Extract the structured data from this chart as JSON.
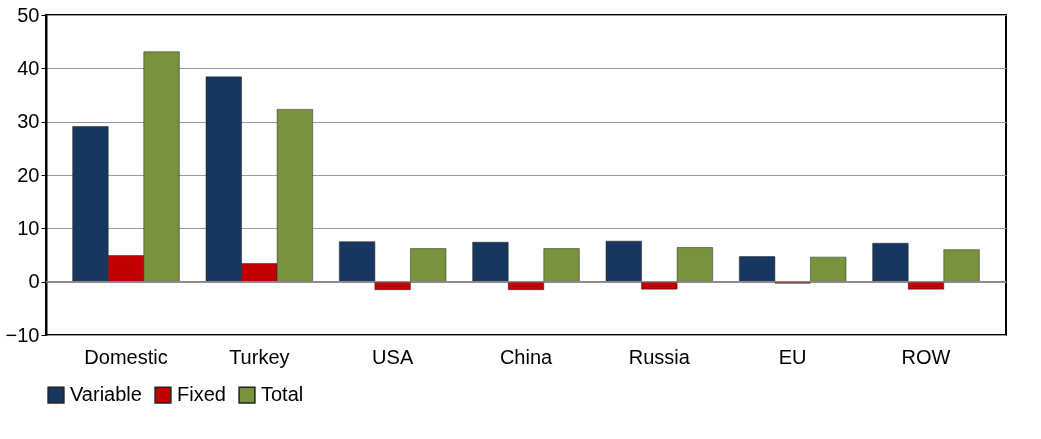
{
  "chart_data": {
    "type": "bar",
    "categories": [
      "Domestic",
      "Turkey",
      "USA",
      "China",
      "Russia",
      "EU",
      "ROW"
    ],
    "series": [
      {
        "name": "Variable",
        "color": "#17375e",
        "values": [
          29.1,
          38.4,
          7.5,
          7.4,
          7.6,
          4.7,
          7.2
        ]
      },
      {
        "name": "Fixed",
        "color": "#c00000",
        "values": [
          4.9,
          3.4,
          -1.5,
          -1.5,
          -1.4,
          -0.3,
          -1.4
        ]
      },
      {
        "name": "Total",
        "color": "#77933c",
        "values": [
          43.1,
          32.3,
          6.2,
          6.2,
          6.4,
          4.6,
          6.0
        ]
      }
    ],
    "ylim": [
      -10,
      50
    ],
    "yticks": [
      -10,
      0,
      10,
      20,
      30,
      40,
      50
    ],
    "grid": "y",
    "legend": "bottom"
  }
}
